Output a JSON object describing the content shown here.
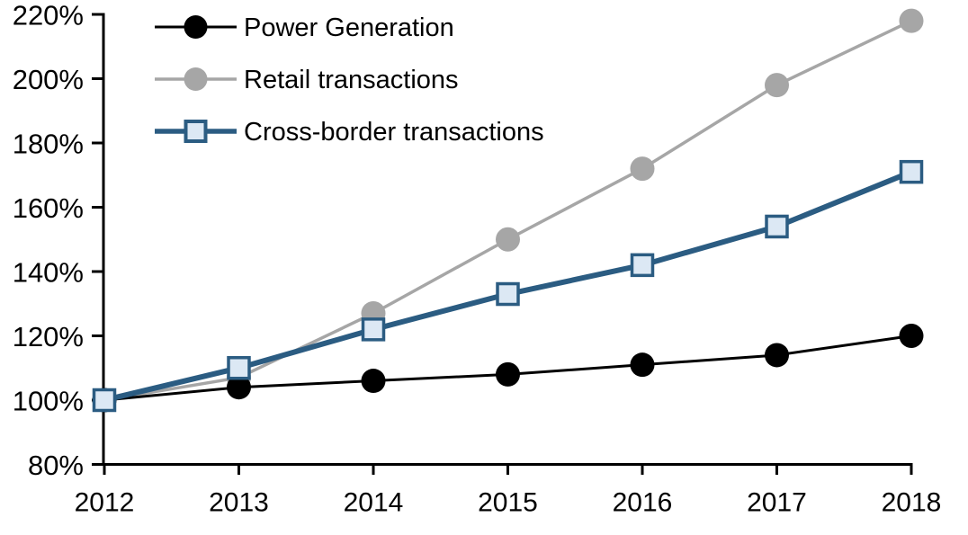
{
  "chart_data": {
    "type": "line",
    "title": "",
    "xlabel": "",
    "ylabel": "",
    "x": [
      "2012",
      "2013",
      "2014",
      "2015",
      "2016",
      "2017",
      "2018"
    ],
    "ylim": [
      80,
      220
    ],
    "ytick_step": 20,
    "yticks": [
      "80%",
      "100%",
      "120%",
      "140%",
      "160%",
      "180%",
      "200%",
      "220%"
    ],
    "grid": false,
    "legend_position": "top-left",
    "series": [
      {
        "name": "Power Generation",
        "values": [
          100,
          104,
          106,
          108,
          111,
          114,
          120
        ],
        "color": "#000000",
        "marker": "circle",
        "marker_fill": "#000000",
        "line_width": 3,
        "draw_order": 2
      },
      {
        "name": "Retail transactions",
        "values": [
          100,
          107,
          127,
          150,
          172,
          198,
          218
        ],
        "color": "#A6A6A6",
        "marker": "circle",
        "marker_fill": "#A6A6A6",
        "line_width": 3.5,
        "draw_order": 1
      },
      {
        "name": "Cross-border transactions",
        "values": [
          100,
          110,
          122,
          133,
          142,
          154,
          171
        ],
        "color": "#2B5C82",
        "marker": "square",
        "marker_fill": "#DCE8F4",
        "line_width": 6,
        "draw_order": 3
      }
    ]
  },
  "colors": {
    "background": "#FFFFFF",
    "axis": "#000000",
    "text": "#000000"
  }
}
